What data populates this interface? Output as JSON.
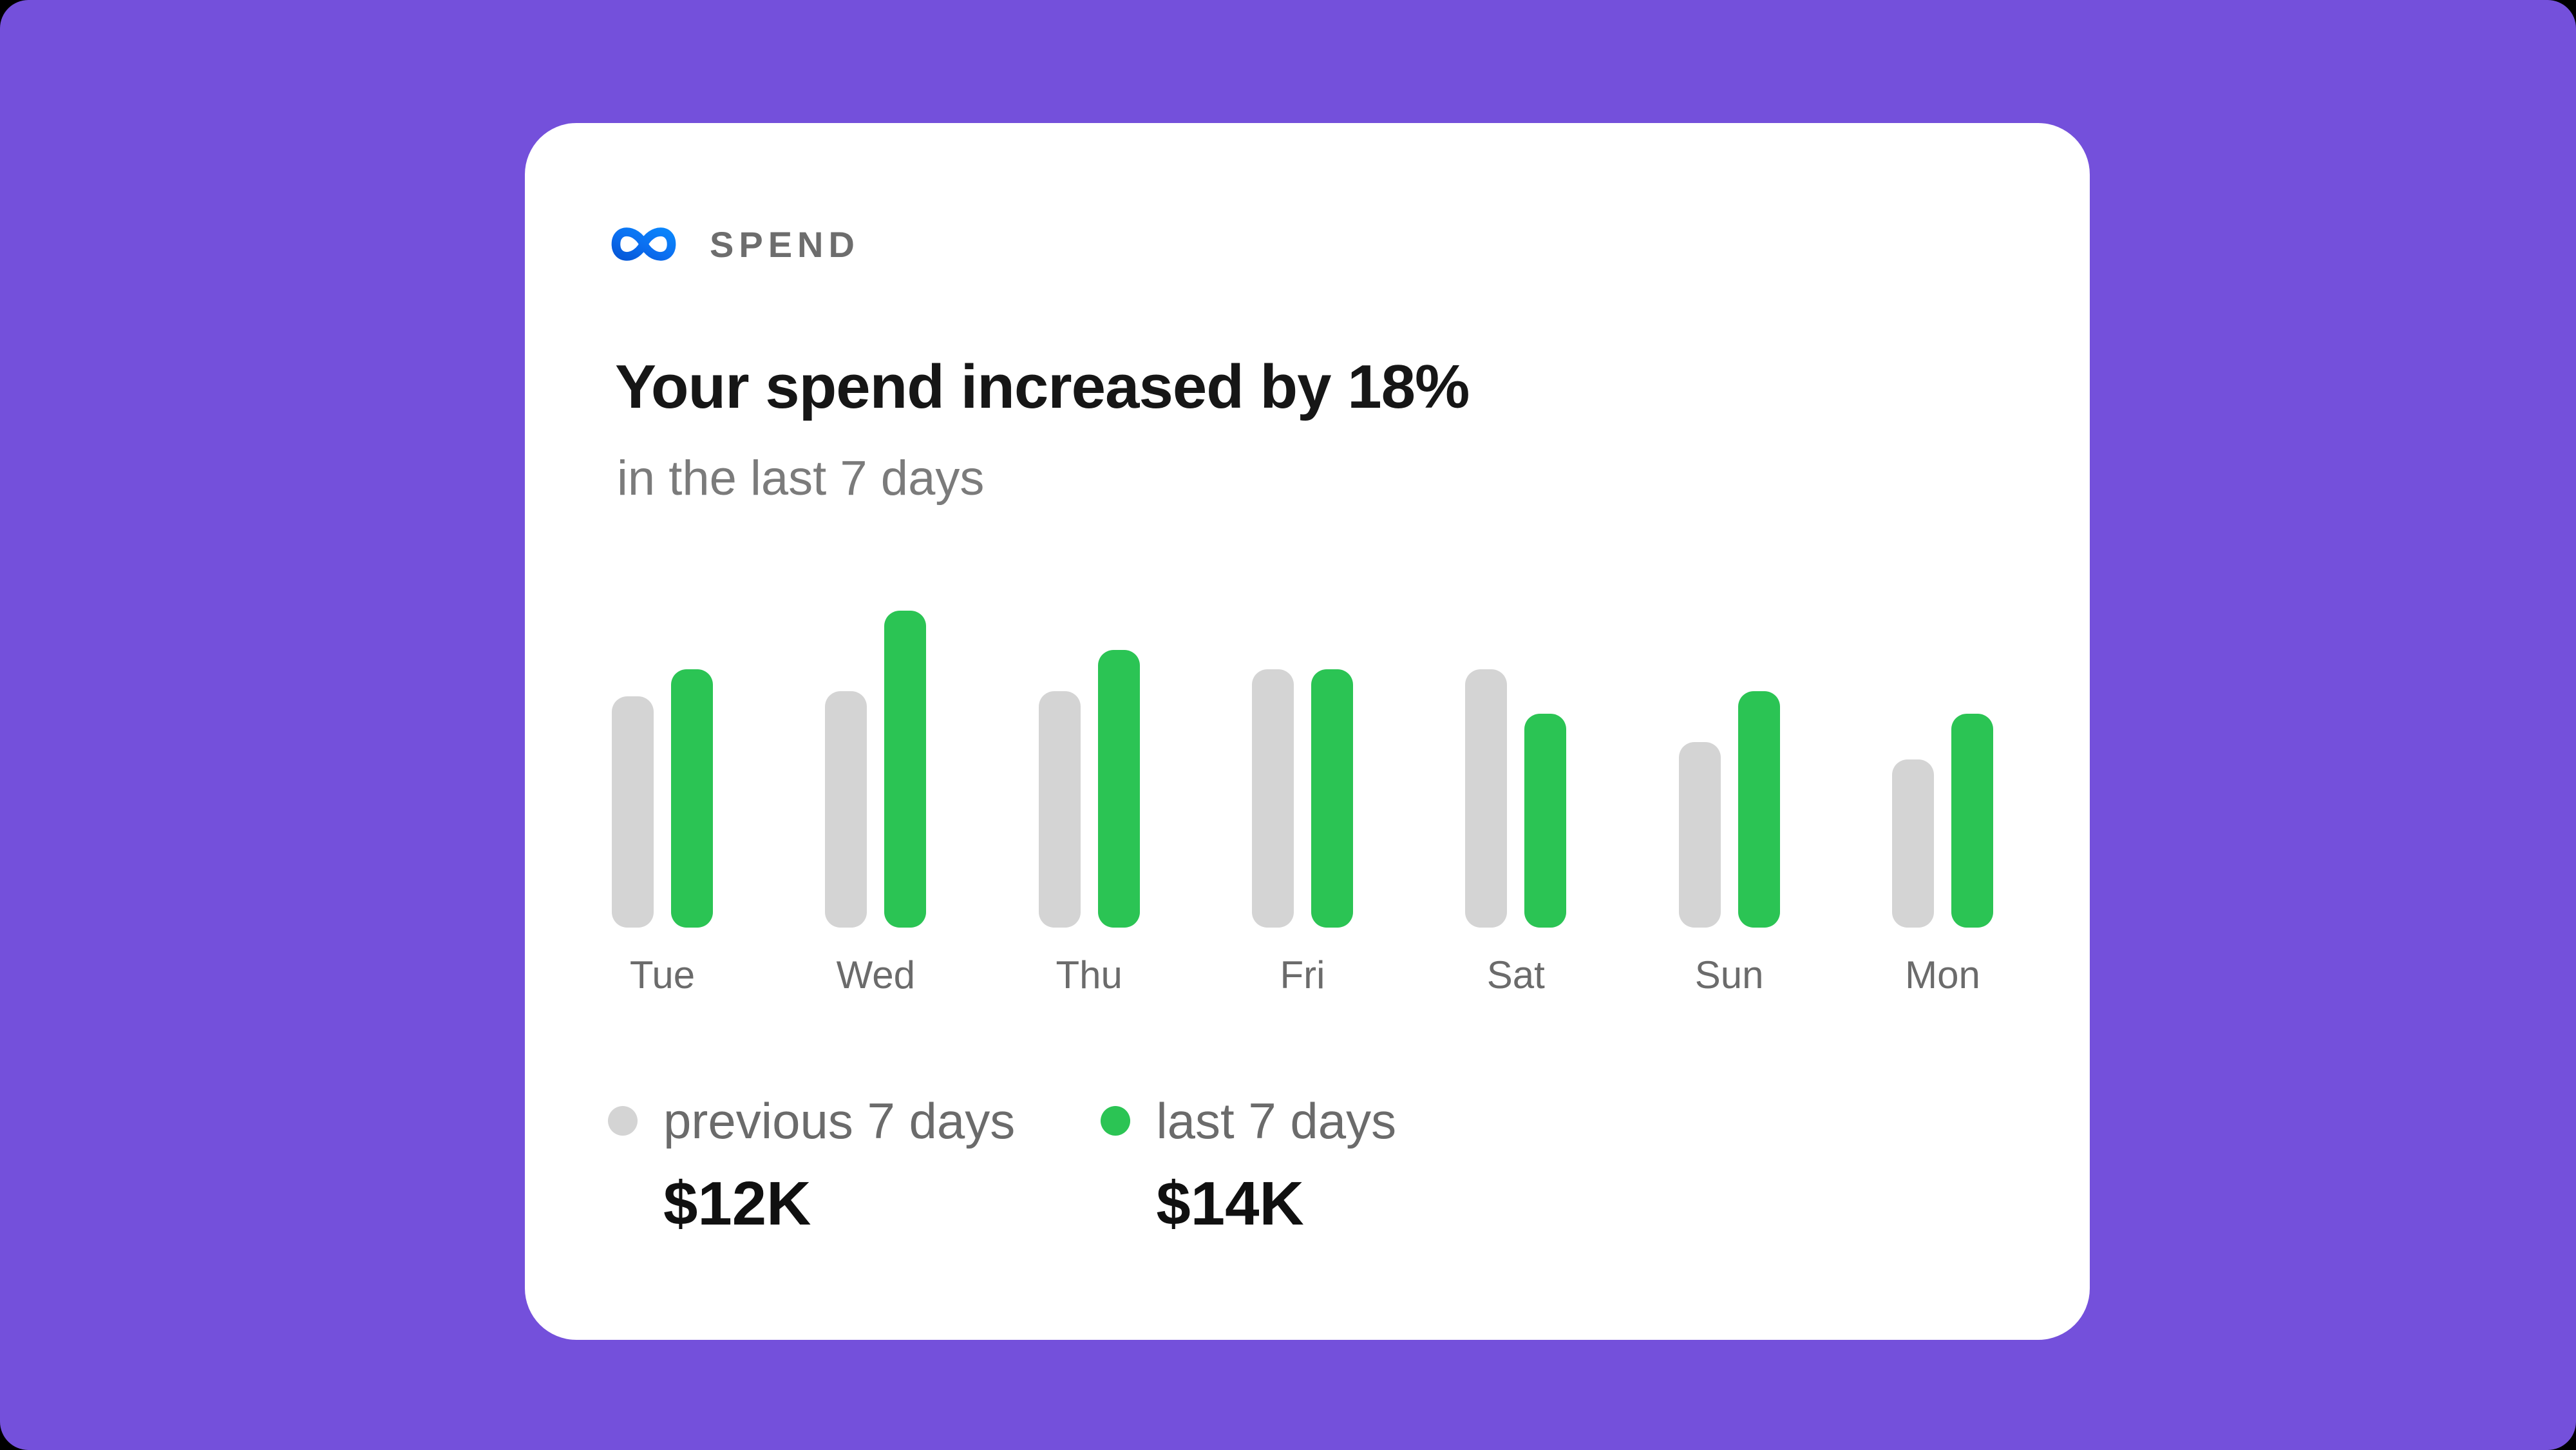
{
  "page": {
    "background_color": "#7450DB"
  },
  "card": {
    "background_color": "#FFFFFF",
    "brand": {
      "logo_icon": "meta-logo",
      "label": "SPEND",
      "label_color": "#6D6D6D",
      "logo_gradient": [
        "#0558D8",
        "#0A7CF8"
      ]
    },
    "title": "Your spend increased by 18%",
    "subtitle": "in the last 7 days",
    "legend": [
      {
        "label": "previous 7 days",
        "value": "$12K",
        "color": "#D4D4D4"
      },
      {
        "label": "last 7 days",
        "value": "$14K",
        "color": "#2BC454"
      }
    ]
  },
  "chart_data": {
    "type": "bar",
    "title": "Your spend increased by 18%",
    "subtitle": "in the last 7 days",
    "increase_pct": 18,
    "categories": [
      "Tue",
      "Wed",
      "Thu",
      "Fri",
      "Sat",
      "Sun",
      "Mon"
    ],
    "series": [
      {
        "name": "previous 7 days",
        "color": "#D4D4D4",
        "total": "$12K",
        "values_pct_of_max": [
          73,
          74.5,
          74.5,
          81.5,
          81.5,
          58.5,
          53
        ]
      },
      {
        "name": "last 7 days",
        "color": "#2BC454",
        "total": "$14K",
        "values_pct_of_max": [
          81.5,
          100,
          87.5,
          81.5,
          67.5,
          74.5,
          67.5
        ]
      }
    ],
    "xlabel": "",
    "ylabel": "",
    "axes": "none",
    "grid": false,
    "legend_position": "bottom"
  }
}
